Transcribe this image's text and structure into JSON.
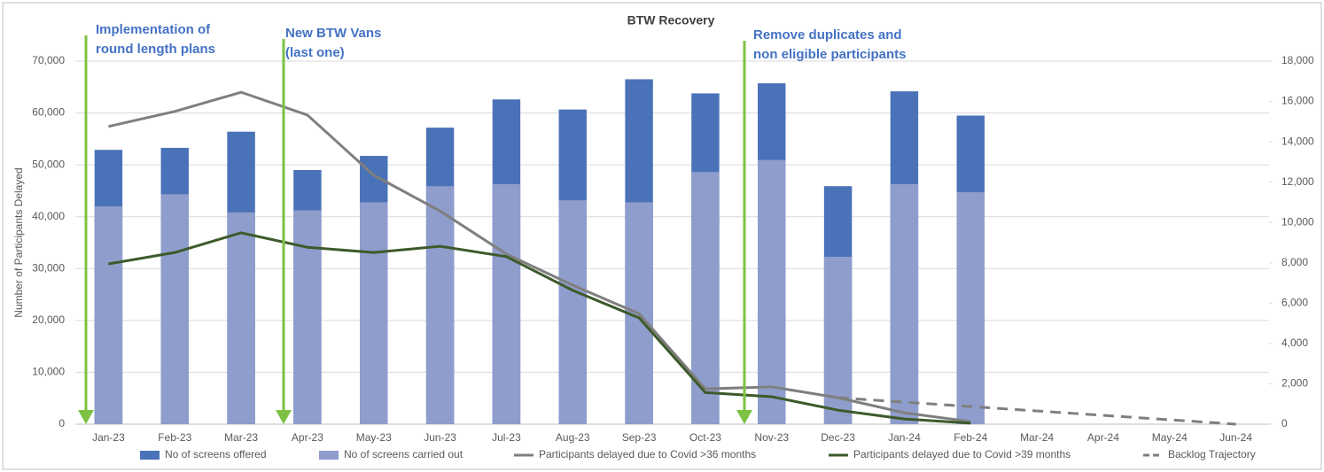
{
  "chart_data": {
    "type": "combo",
    "title": "BTW Recovery",
    "y_label": "Number of Participants Delayed",
    "categories": [
      "Jan-23",
      "Feb-23",
      "Mar-23",
      "Apr-23",
      "May-23",
      "Jun-23",
      "Jul-23",
      "Aug-23",
      "Sep-23",
      "Oct-23",
      "Nov-23",
      "Dec-23",
      "Jan-24",
      "Feb-24",
      "Mar-24",
      "Apr-24",
      "May-24",
      "Jun-24"
    ],
    "ylim": [
      0,
      70000
    ],
    "yticks": [
      0,
      {
        "value": 10000,
        "label": "10,000"
      },
      {
        "value": 20000,
        "label": "20,000"
      },
      {
        "value": 30000,
        "label": "30,000"
      },
      {
        "value": 40000,
        "label": "40,000"
      },
      {
        "value": 50000,
        "label": "50,000"
      },
      {
        "value": 60000,
        "label": "60,000"
      },
      {
        "value": 70000,
        "label": "70,000"
      }
    ],
    "y2lim": [
      0,
      18000
    ],
    "y2ticks": [
      0,
      {
        "value": 2000,
        "label": "2,000"
      },
      {
        "value": 4000,
        "label": "4,000"
      },
      {
        "value": 6000,
        "label": "6,000"
      },
      {
        "value": 8000,
        "label": "8,000"
      },
      {
        "value": 10000,
        "label": "10,000"
      },
      {
        "value": 12000,
        "label": "12,000"
      },
      {
        "value": 14000,
        "label": "14,000"
      },
      {
        "value": 16000,
        "label": "16,000"
      },
      {
        "value": 18000,
        "label": "18,000"
      }
    ],
    "grid": true,
    "legend": "bottom",
    "series": [
      {
        "name": "No of screens offered",
        "type": "bar",
        "axis": "y2",
        "color": "#4a72b8",
        "values": [
          13600,
          13700,
          14500,
          12600,
          13300,
          14700,
          16100,
          15600,
          17100,
          16400,
          16900,
          11800,
          16500,
          15300,
          null,
          null,
          null,
          null
        ]
      },
      {
        "name": "No of screens carried out",
        "type": "bar",
        "axis": "y2",
        "color": "#8e9dcc",
        "values": [
          10800,
          11400,
          10500,
          10600,
          11000,
          11800,
          11900,
          11100,
          11000,
          12500,
          13100,
          8300,
          11900,
          11500,
          null,
          null,
          null,
          null
        ]
      },
      {
        "name": "Participants delayed due to Covid >36 months",
        "type": "line",
        "color": "#7f7f7f",
        "values": [
          57400,
          60300,
          64000,
          59600,
          48000,
          41100,
          32800,
          26800,
          21300,
          6800,
          7200,
          5100,
          2200,
          500,
          null,
          null,
          null,
          null
        ]
      },
      {
        "name": "Participants delayed due to Covid >39 months",
        "type": "line",
        "color": "#3d5a2a",
        "values": [
          30900,
          33100,
          36900,
          34100,
          33100,
          34300,
          32300,
          25800,
          20500,
          6100,
          5300,
          2700,
          1000,
          200,
          null,
          null,
          null,
          null
        ]
      },
      {
        "name": "Backlog Trajectory",
        "type": "line",
        "dashed": true,
        "color": "#7f7f7f",
        "values": [
          null,
          null,
          null,
          null,
          null,
          null,
          null,
          null,
          null,
          null,
          null,
          5100,
          4250,
          3400,
          2550,
          1700,
          850,
          0
        ]
      }
    ],
    "annotations": [
      {
        "lines": [
          "Implementation of",
          "round length plans"
        ]
      },
      {
        "lines": [
          "New BTW Vans",
          "(last one)"
        ]
      },
      {
        "lines": [
          "Remove duplicates and",
          "non eligible participants"
        ]
      }
    ]
  }
}
